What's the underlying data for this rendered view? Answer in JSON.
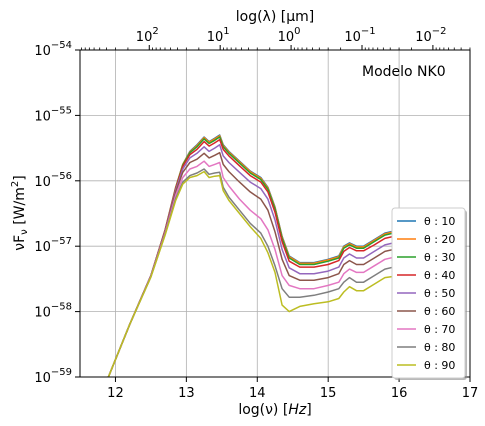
{
  "chart_data": {
    "type": "line",
    "annotation": "Modelo NK0",
    "xlabel": "log(ν) [Hz]",
    "ylabel": "νF_ν [W/m²]",
    "top_xlabel": "log(λ) [μm]",
    "xlim": [
      11.5,
      17
    ],
    "ylim_log10": [
      -59,
      -54
    ],
    "x_ticks": [
      12,
      13,
      14,
      15,
      16,
      17
    ],
    "y_ticks_exp": [
      -59,
      -58,
      -57,
      -56,
      -55,
      -54
    ],
    "top_ticks_exp": [
      2,
      1,
      0,
      -1,
      -2
    ],
    "grid": true,
    "legend_position": "lower-right",
    "colors": [
      "#1f77b4",
      "#ff7f0e",
      "#2ca02c",
      "#d62728",
      "#9467bd",
      "#8c564b",
      "#e377c2",
      "#7f7f7f",
      "#bcbd22"
    ],
    "x": [
      11.9,
      12.2,
      12.5,
      12.7,
      12.85,
      12.95,
      13.05,
      13.15,
      13.25,
      13.32,
      13.4,
      13.47,
      13.52,
      13.6,
      13.75,
      13.9,
      14.05,
      14.15,
      14.25,
      14.35,
      14.45,
      14.6,
      14.8,
      15.0,
      15.15,
      15.22,
      15.3,
      15.4,
      15.5,
      15.65,
      15.8,
      16.0,
      16.2,
      16.35,
      16.5
    ],
    "series": [
      {
        "name": "θ : 10",
        "values": [
          -59.0,
          -58.2,
          -57.45,
          -56.75,
          -56.1,
          -55.75,
          -55.55,
          -55.45,
          -55.33,
          -55.4,
          -55.35,
          -55.3,
          -55.45,
          -55.55,
          -55.7,
          -55.85,
          -55.95,
          -56.1,
          -56.4,
          -56.85,
          -57.15,
          -57.25,
          -57.25,
          -57.2,
          -57.15,
          -57.0,
          -56.95,
          -57.0,
          -57.0,
          -56.9,
          -56.8,
          -56.75,
          -56.75,
          -56.75,
          -56.8
        ]
      },
      {
        "name": "θ : 20",
        "values": [
          -59.0,
          -58.2,
          -57.45,
          -56.75,
          -56.1,
          -55.75,
          -55.56,
          -55.46,
          -55.34,
          -55.41,
          -55.36,
          -55.31,
          -55.46,
          -55.56,
          -55.71,
          -55.86,
          -55.96,
          -56.11,
          -56.41,
          -56.86,
          -57.16,
          -57.26,
          -57.26,
          -57.21,
          -57.16,
          -57.01,
          -56.96,
          -57.01,
          -57.01,
          -56.91,
          -56.81,
          -56.76,
          -56.76,
          -56.76,
          -56.81
        ]
      },
      {
        "name": "θ : 30",
        "values": [
          -59.0,
          -58.2,
          -57.45,
          -56.76,
          -56.11,
          -55.76,
          -55.57,
          -55.48,
          -55.36,
          -55.43,
          -55.38,
          -55.33,
          -55.48,
          -55.58,
          -55.73,
          -55.88,
          -55.98,
          -56.13,
          -56.43,
          -56.88,
          -57.18,
          -57.28,
          -57.28,
          -57.23,
          -57.18,
          -57.03,
          -56.98,
          -57.03,
          -57.03,
          -56.93,
          -56.83,
          -56.78,
          -56.78,
          -56.78,
          -56.83
        ]
      },
      {
        "name": "θ : 40",
        "values": [
          -59.0,
          -58.2,
          -57.45,
          -56.76,
          -56.12,
          -55.78,
          -55.6,
          -55.52,
          -55.4,
          -55.47,
          -55.42,
          -55.37,
          -55.52,
          -55.62,
          -55.77,
          -55.92,
          -56.02,
          -56.17,
          -56.48,
          -56.93,
          -57.23,
          -57.32,
          -57.32,
          -57.28,
          -57.22,
          -57.08,
          -57.02,
          -57.07,
          -57.07,
          -56.98,
          -56.88,
          -56.83,
          -56.83,
          -56.83,
          -56.88
        ]
      },
      {
        "name": "θ : 50",
        "values": [
          -59.0,
          -58.2,
          -57.45,
          -56.77,
          -56.14,
          -55.82,
          -55.65,
          -55.58,
          -55.48,
          -55.55,
          -55.5,
          -55.45,
          -55.62,
          -55.72,
          -55.87,
          -56.02,
          -56.12,
          -56.28,
          -56.6,
          -57.05,
          -57.33,
          -57.42,
          -57.42,
          -57.38,
          -57.32,
          -57.18,
          -57.12,
          -57.18,
          -57.18,
          -57.08,
          -56.98,
          -56.93,
          -56.93,
          -56.93,
          -56.98
        ]
      },
      {
        "name": "θ : 60",
        "values": [
          -59.0,
          -58.2,
          -57.46,
          -56.78,
          -56.17,
          -55.87,
          -55.72,
          -55.67,
          -55.58,
          -55.65,
          -55.61,
          -55.57,
          -55.75,
          -55.86,
          -56.02,
          -56.17,
          -56.28,
          -56.45,
          -56.78,
          -57.2,
          -57.45,
          -57.52,
          -57.52,
          -57.48,
          -57.42,
          -57.28,
          -57.22,
          -57.28,
          -57.28,
          -57.18,
          -57.08,
          -57.03,
          -57.03,
          -57.03,
          -57.08
        ]
      },
      {
        "name": "θ : 70",
        "values": [
          -59.0,
          -58.2,
          -57.46,
          -56.8,
          -56.22,
          -55.95,
          -55.82,
          -55.78,
          -55.7,
          -55.78,
          -55.75,
          -55.72,
          -55.95,
          -56.08,
          -56.28,
          -56.45,
          -56.58,
          -56.75,
          -57.05,
          -57.45,
          -57.6,
          -57.65,
          -57.65,
          -57.6,
          -57.55,
          -57.42,
          -57.35,
          -57.4,
          -57.4,
          -57.3,
          -57.2,
          -57.15,
          -57.15,
          -57.15,
          -57.2
        ]
      },
      {
        "name": "θ : 80",
        "values": [
          -59.0,
          -58.2,
          -57.47,
          -56.82,
          -56.27,
          -56.02,
          -55.92,
          -55.88,
          -55.82,
          -55.9,
          -55.88,
          -55.87,
          -56.1,
          -56.25,
          -56.45,
          -56.65,
          -56.8,
          -57.0,
          -57.3,
          -57.65,
          -57.78,
          -57.78,
          -57.75,
          -57.7,
          -57.65,
          -57.55,
          -57.48,
          -57.55,
          -57.55,
          -57.45,
          -57.35,
          -57.3,
          -57.3,
          -57.3,
          -57.35
        ]
      },
      {
        "name": "θ : 90",
        "values": [
          -59.0,
          -58.2,
          -57.47,
          -56.83,
          -56.3,
          -56.05,
          -55.95,
          -55.92,
          -55.86,
          -55.95,
          -55.93,
          -55.92,
          -56.15,
          -56.3,
          -56.5,
          -56.7,
          -56.88,
          -57.1,
          -57.4,
          -57.9,
          -58.0,
          -57.92,
          -57.88,
          -57.85,
          -57.8,
          -57.7,
          -57.62,
          -57.68,
          -57.68,
          -57.58,
          -57.48,
          -57.45,
          -57.45,
          -57.45,
          -57.5
        ]
      }
    ]
  }
}
